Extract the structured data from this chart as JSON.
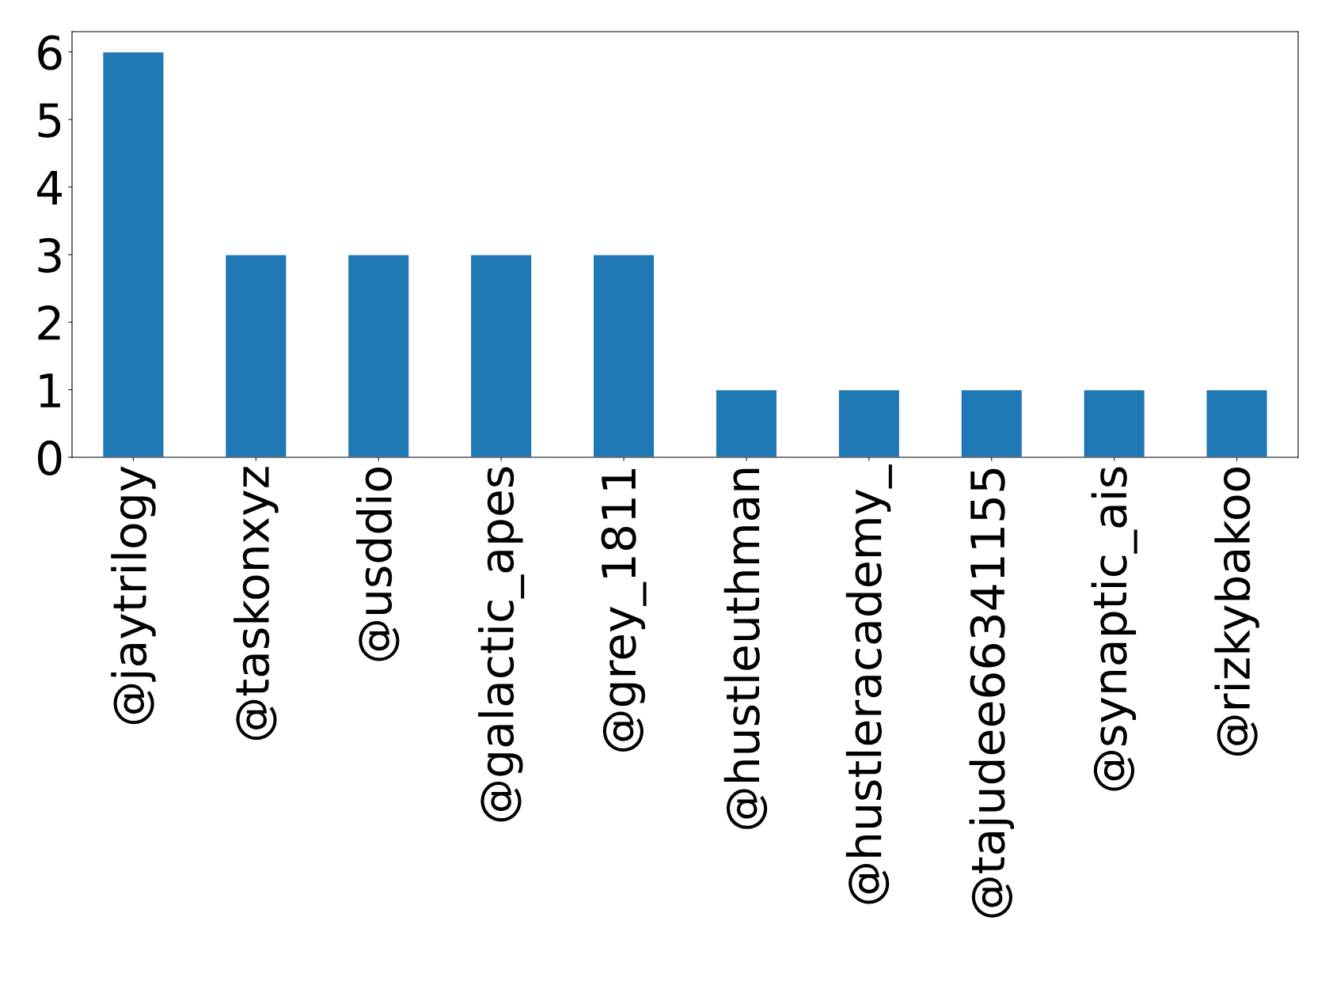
{
  "chart_data": {
    "type": "bar",
    "categories": [
      "@jaytrilogy",
      "@taskonxyz",
      "@usddio",
      "@galactic_apes",
      "@grey_1811",
      "@hustleuthman",
      "@hustleracademy_",
      "@tajudee66341155",
      "@synaptic_ais",
      "@rizkybakoo"
    ],
    "values": [
      6,
      3,
      3,
      3,
      3,
      1,
      1,
      1,
      1,
      1
    ],
    "color": "#1f77b4",
    "ylim": [
      0,
      6.3
    ],
    "yticks": [
      0,
      1,
      2,
      3,
      4,
      5,
      6
    ],
    "grid": false
  }
}
